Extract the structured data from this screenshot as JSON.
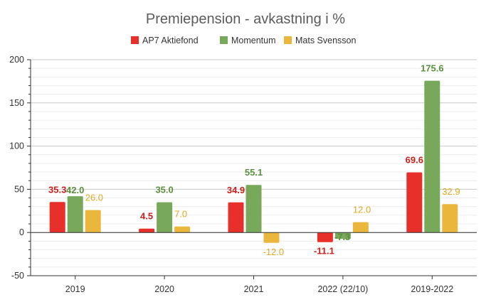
{
  "chart_data": {
    "type": "bar",
    "title": "Premiepension - avkastning i %",
    "categories": [
      "2019",
      "2020",
      "2021",
      "2022 (22/10)",
      "2019-2022"
    ],
    "series": [
      {
        "name": "AP7 Aktiefond",
        "color": "#e8302a",
        "values": [
          35.3,
          4.5,
          34.9,
          -11.1,
          69.6
        ],
        "labels": [
          "35.3",
          "4.5",
          "34.9",
          "-11.1",
          "69.6"
        ],
        "label_color": "#cc1f1a",
        "label_bold": true
      },
      {
        "name": "Momentum",
        "color": "#78a95a",
        "values": [
          42.0,
          35.0,
          55.1,
          -7.3,
          175.6
        ],
        "labels": [
          "42.0",
          "35.0",
          "55.1",
          "-7.3",
          "175.6"
        ],
        "label_color": "#5a8f3c",
        "label_bold": true
      },
      {
        "name": "Mats Svensson",
        "color": "#eab73c",
        "values": [
          26.0,
          7.0,
          -12.0,
          12.0,
          32.9
        ],
        "labels": [
          "26.0",
          "7.0",
          "-12.0",
          "12.0",
          "32.9"
        ],
        "label_color": "#e0a81f",
        "label_bold": false
      }
    ],
    "ylim": [
      -50,
      200
    ],
    "yticks": [
      -50,
      0,
      50,
      100,
      150,
      200
    ],
    "grid": true,
    "legend_position": "top"
  }
}
